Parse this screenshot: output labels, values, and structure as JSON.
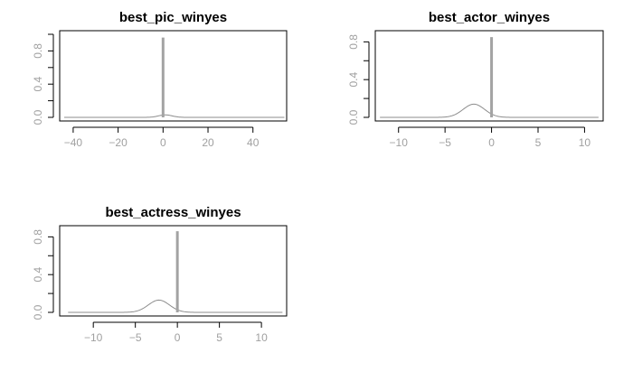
{
  "chart_data": [
    {
      "type": "line",
      "title": "best_pic_winyes",
      "xlabel": "",
      "ylabel": "",
      "xlim": [
        -46,
        55
      ],
      "ylim": [
        0,
        1.0
      ],
      "xticks": [
        -40,
        -20,
        0,
        20,
        40
      ],
      "yticks": [
        0.0,
        0.4,
        0.8
      ],
      "yticks_minor": [
        0.2,
        0.6,
        1.0
      ],
      "x_range": [
        -44,
        54
      ],
      "density": {
        "center": 1.0,
        "sd": 3.0,
        "peak": 0.03
      },
      "spike": {
        "x": 0,
        "height": 0.96
      }
    },
    {
      "type": "line",
      "title": "best_actor_winyes",
      "xlabel": "",
      "ylabel": "",
      "xlim": [
        -12.5,
        12.0
      ],
      "ylim": [
        0,
        0.88
      ],
      "xticks": [
        -10,
        -5,
        0,
        5,
        10
      ],
      "yticks": [
        0.0,
        0.4,
        0.8
      ],
      "yticks_minor": [
        0.2,
        0.6
      ],
      "x_range": [
        -12,
        11.5
      ],
      "density": {
        "center": -1.9,
        "sd": 1.15,
        "peak": 0.14
      },
      "spike": {
        "x": 0,
        "height": 0.85
      }
    },
    {
      "type": "line",
      "title": "best_actress_winyes",
      "xlabel": "",
      "ylabel": "",
      "xlim": [
        -14,
        13.0
      ],
      "ylim": [
        0,
        0.88
      ],
      "xticks": [
        -10,
        -5,
        0,
        5,
        10
      ],
      "yticks": [
        0.0,
        0.4,
        0.8
      ],
      "yticks_minor": [
        0.2,
        0.6
      ],
      "x_range": [
        -13,
        12.5
      ],
      "density": {
        "center": -2.2,
        "sd": 1.25,
        "peak": 0.13
      },
      "spike": {
        "x": 0,
        "height": 0.86
      }
    }
  ]
}
